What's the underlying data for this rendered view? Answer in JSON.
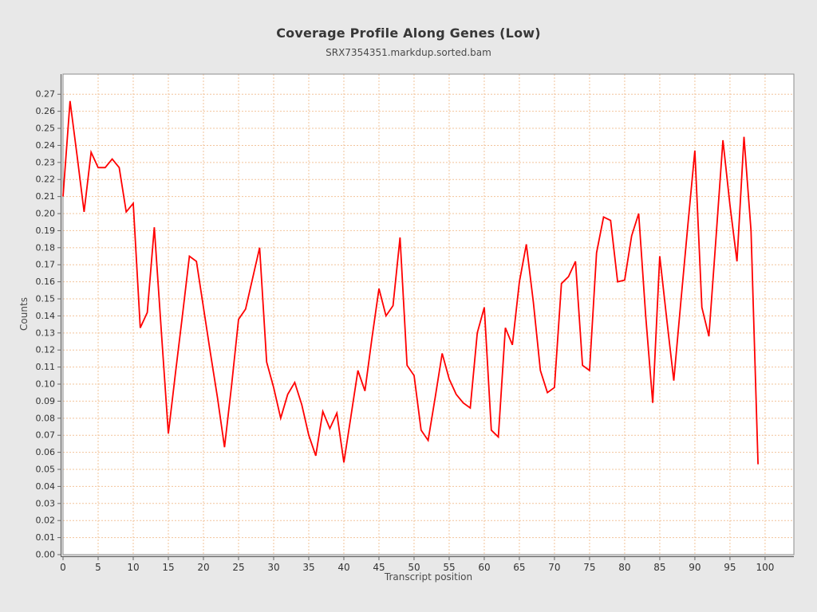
{
  "header": {
    "title": "Coverage Profile Along Genes (Low)",
    "subtitle": "SRX7354351.markdup.sorted.bam"
  },
  "colors": {
    "page_background": "#e8e8e8",
    "plot_background": "#ffffff",
    "plot_border": "#8c8c8c",
    "axis_line": "#666666",
    "grid": "#f2c49b",
    "tick_text": "#333333",
    "series_line": "#ff0000"
  },
  "chart_data": {
    "type": "line",
    "title": "Coverage Profile Along Genes (Low)",
    "subtitle": "SRX7354351.markdup.sorted.bam",
    "xlabel": "Transcript position",
    "ylabel": "Counts",
    "legend": false,
    "grid": true,
    "grid_style": "dashed",
    "x_start": 0,
    "x_step": 1,
    "xlim": [
      0,
      104.1
    ],
    "ylim": [
      0,
      0.2818
    ],
    "x_ticks": [
      0,
      5,
      10,
      15,
      20,
      25,
      30,
      35,
      40,
      45,
      50,
      55,
      60,
      65,
      70,
      75,
      80,
      85,
      90,
      95,
      100
    ],
    "y_tick_min": 0.0,
    "y_tick_max": 0.27,
    "y_tick_step": 0.01,
    "values": [
      0.21,
      0.266,
      0.234,
      0.201,
      0.236,
      0.227,
      0.227,
      0.232,
      0.227,
      0.201,
      0.206,
      0.133,
      0.142,
      0.192,
      0.131,
      0.071,
      0.106,
      0.14,
      0.175,
      0.172,
      0.145,
      0.118,
      0.092,
      0.063,
      0.099,
      0.138,
      0.144,
      0.162,
      0.18,
      0.113,
      0.098,
      0.08,
      0.094,
      0.101,
      0.088,
      0.07,
      0.058,
      0.084,
      0.074,
      0.083,
      0.054,
      0.081,
      0.108,
      0.096,
      0.127,
      0.156,
      0.14,
      0.146,
      0.186,
      0.111,
      0.105,
      0.073,
      0.067,
      0.092,
      0.118,
      0.103,
      0.094,
      0.089,
      0.086,
      0.13,
      0.145,
      0.073,
      0.069,
      0.133,
      0.123,
      0.16,
      0.182,
      0.148,
      0.108,
      0.095,
      0.098,
      0.159,
      0.163,
      0.172,
      0.111,
      0.108,
      0.177,
      0.198,
      0.196,
      0.16,
      0.161,
      0.187,
      0.2,
      0.14,
      0.089,
      0.175,
      0.138,
      0.102,
      0.148,
      0.193,
      0.237,
      0.145,
      0.128,
      0.185,
      0.243,
      0.205,
      0.172,
      0.245,
      0.19,
      0.053
    ]
  }
}
